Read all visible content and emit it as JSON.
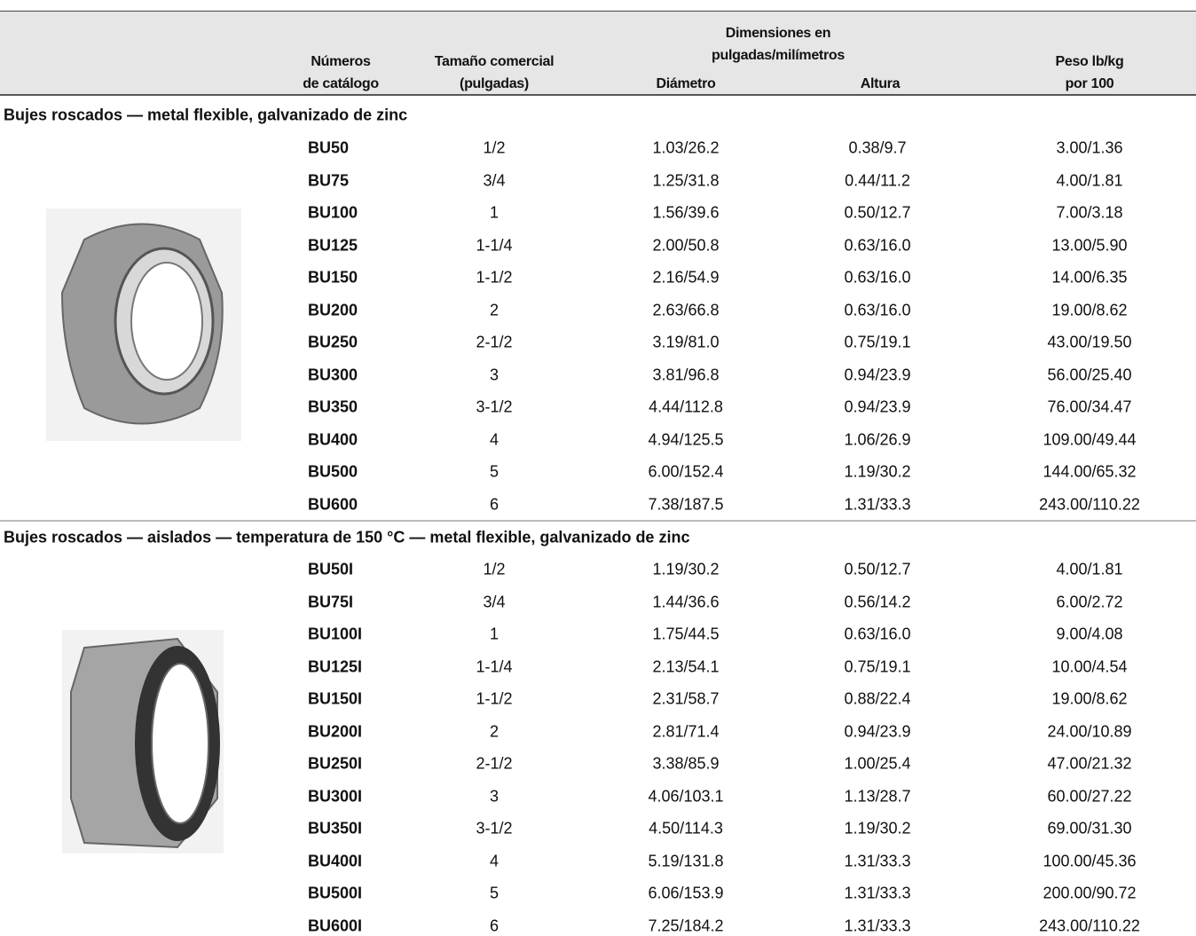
{
  "header": {
    "catalog": [
      "Números",
      "de catálogo"
    ],
    "size": [
      "Tamaño comercial",
      "(pulgadas)"
    ],
    "dimensions": [
      "Dimensiones en",
      "pulgadas/milímetros"
    ],
    "diameter": "Diámetro",
    "height": "Altura",
    "weight": [
      "Peso lb/kg",
      "por 100"
    ]
  },
  "sections": [
    {
      "title": "Bujes roscados — metal flexible, galvanizado de zinc",
      "rows": [
        [
          "BU50",
          "1/2",
          "1.03/26.2",
          "0.38/9.7",
          "3.00/1.36"
        ],
        [
          "BU75",
          "3/4",
          "1.25/31.8",
          "0.44/11.2",
          "4.00/1.81"
        ],
        [
          "BU100",
          "1",
          "1.56/39.6",
          "0.50/12.7",
          "7.00/3.18"
        ],
        [
          "BU125",
          "1-1/4",
          "2.00/50.8",
          "0.63/16.0",
          "13.00/5.90"
        ],
        [
          "BU150",
          "1-1/2",
          "2.16/54.9",
          "0.63/16.0",
          "14.00/6.35"
        ],
        [
          "BU200",
          "2",
          "2.63/66.8",
          "0.63/16.0",
          "19.00/8.62"
        ],
        [
          "BU250",
          "2-1/2",
          "3.19/81.0",
          "0.75/19.1",
          "43.00/19.50"
        ],
        [
          "BU300",
          "3",
          "3.81/96.8",
          "0.94/23.9",
          "56.00/25.40"
        ],
        [
          "BU350",
          "3-1/2",
          "4.44/112.8",
          "0.94/23.9",
          "76.00/34.47"
        ],
        [
          "BU400",
          "4",
          "4.94/125.5",
          "1.06/26.9",
          "109.00/49.44"
        ],
        [
          "BU500",
          "5",
          "6.00/152.4",
          "1.19/30.2",
          "144.00/65.32"
        ],
        [
          "BU600",
          "6",
          "7.38/187.5",
          "1.31/33.3",
          "243.00/110.22"
        ]
      ]
    },
    {
      "title": "Bujes roscados — aislados — temperatura de 150 °C — metal flexible, galvanizado de zinc",
      "rows": [
        [
          "BU50I",
          "1/2",
          "1.19/30.2",
          "0.50/12.7",
          "4.00/1.81"
        ],
        [
          "BU75I",
          "3/4",
          "1.44/36.6",
          "0.56/14.2",
          "6.00/2.72"
        ],
        [
          "BU100I",
          "1",
          "1.75/44.5",
          "0.63/16.0",
          "9.00/4.08"
        ],
        [
          "BU125I",
          "1-1/4",
          "2.13/54.1",
          "0.75/19.1",
          "10.00/4.54"
        ],
        [
          "BU150I",
          "1-1/2",
          "2.31/58.7",
          "0.88/22.4",
          "19.00/8.62"
        ],
        [
          "BU200I",
          "2",
          "2.81/71.4",
          "0.94/23.9",
          "24.00/10.89"
        ],
        [
          "BU250I",
          "2-1/2",
          "3.38/85.9",
          "1.00/25.4",
          "47.00/21.32"
        ],
        [
          "BU300I",
          "3",
          "4.06/103.1",
          "1.13/28.7",
          "60.00/27.22"
        ],
        [
          "BU350I",
          "3-1/2",
          "4.50/114.3",
          "1.19/30.2",
          "69.00/31.30"
        ],
        [
          "BU400I",
          "4",
          "5.19/131.8",
          "1.31/33.3",
          "100.00/45.36"
        ],
        [
          "BU500I",
          "5",
          "6.06/153.9",
          "1.31/33.3",
          "200.00/90.72"
        ],
        [
          "BU600I",
          "6",
          "7.25/184.2",
          "1.31/33.3",
          "243.00/110.22"
        ]
      ]
    }
  ]
}
